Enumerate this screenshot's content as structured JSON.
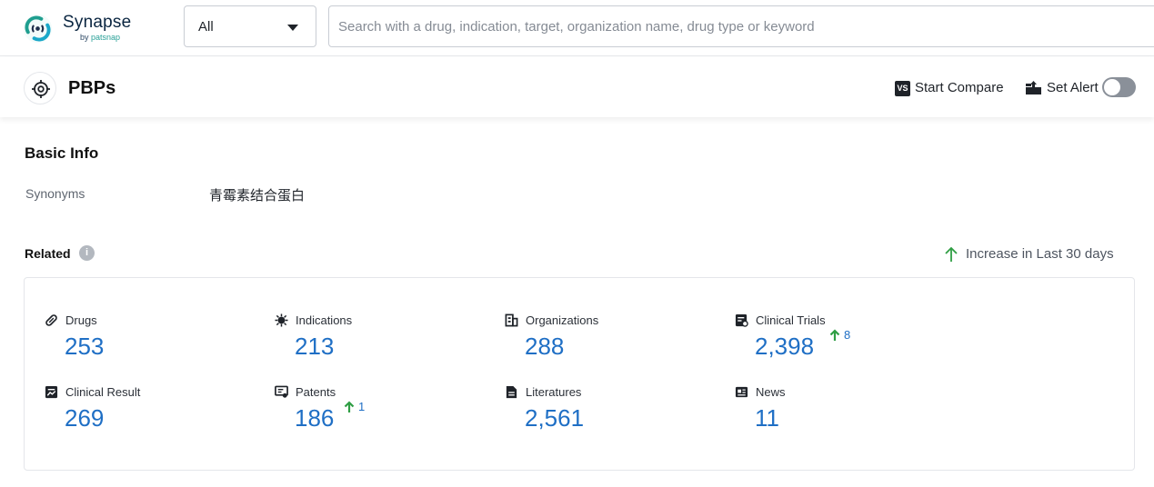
{
  "app": {
    "logo_title": "Synapse",
    "logo_sub_prefix": "by",
    "logo_sub_brand": "patsnap"
  },
  "search": {
    "scope_value": "All",
    "placeholder": "Search with a drug, indication, target, organization name, drug type or keyword"
  },
  "header": {
    "title": "PBPs",
    "compare_label": "Start Compare",
    "compare_icon_text": "VS",
    "alert_label": "Set Alert",
    "alert_enabled": false
  },
  "basic_info": {
    "title": "Basic Info",
    "synonyms_label": "Synonyms",
    "synonyms_value": "青霉素结合蛋白"
  },
  "related": {
    "title": "Related",
    "info_icon_text": "i",
    "legend_label": "Increase in Last 30 days",
    "accent_color": "#1f6fc5",
    "increase_color": "#2f9e44",
    "stats": [
      {
        "label": "Drugs",
        "value": "253",
        "increase": null,
        "icon": "pill-icon"
      },
      {
        "label": "Indications",
        "value": "213",
        "increase": null,
        "icon": "virus-icon"
      },
      {
        "label": "Organizations",
        "value": "288",
        "increase": null,
        "icon": "building-icon"
      },
      {
        "label": "Clinical Trials",
        "value": "2,398",
        "increase": "8",
        "icon": "clinical-trials-icon"
      },
      {
        "label": "Clinical Result",
        "value": "269",
        "increase": null,
        "icon": "clinical-result-icon"
      },
      {
        "label": "Patents",
        "value": "186",
        "increase": "1",
        "icon": "patent-icon"
      },
      {
        "label": "Literatures",
        "value": "2,561",
        "increase": null,
        "icon": "document-icon"
      },
      {
        "label": "News",
        "value": "11",
        "increase": null,
        "icon": "news-icon"
      }
    ]
  }
}
